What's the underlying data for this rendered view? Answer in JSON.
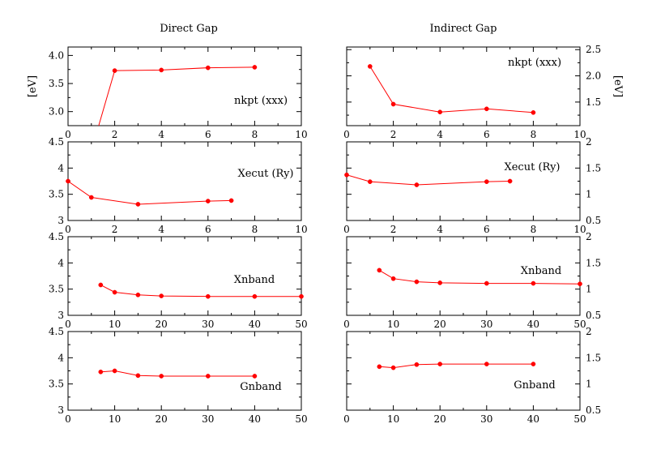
{
  "titles": {
    "direct": "Direct Gap",
    "indirect": "Indirect Gap"
  },
  "colors": {
    "series": "#ff0000",
    "axes": "#000000"
  },
  "chart_data": [
    {
      "type": "line",
      "column": "direct",
      "label": "nkpt (xxx)",
      "ylabel": "[eV]",
      "ylabel_side": "left",
      "xlim": [
        0,
        10
      ],
      "ylim": [
        2.75,
        4.15
      ],
      "xticks": [
        0,
        2,
        4,
        6,
        8,
        10
      ],
      "yticks": [
        3.0,
        3.5,
        4.0
      ],
      "ytick_labels": [
        "3.0",
        "3.5",
        "4.0"
      ],
      "x": [
        1,
        2,
        4,
        6,
        8
      ],
      "y": [
        2.3,
        3.73,
        3.74,
        3.78,
        3.79
      ],
      "markers_from": 1
    },
    {
      "type": "line",
      "column": "indirect",
      "label": "nkpt (xxx)",
      "ylabel": "[eV]",
      "ylabel_side": "right",
      "xlim": [
        0,
        10
      ],
      "ylim": [
        1.05,
        2.55
      ],
      "xticks": [
        0,
        2,
        4,
        6,
        8,
        10
      ],
      "yticks": [
        1.5,
        2.0,
        2.5
      ],
      "ytick_labels": [
        "1.5",
        "2.0",
        "2.5"
      ],
      "x": [
        1,
        2,
        4,
        6,
        8
      ],
      "y": [
        2.18,
        1.46,
        1.31,
        1.37,
        1.3
      ],
      "markers_from": 0
    },
    {
      "type": "line",
      "column": "direct",
      "label": "Xecut (Ry)",
      "xlim": [
        0,
        10
      ],
      "ylim": [
        3,
        4.5
      ],
      "xticks": [
        0,
        2,
        4,
        6,
        8,
        10
      ],
      "yticks": [
        3,
        3.5,
        4,
        4.5
      ],
      "ytick_labels": [
        "3",
        "3.5",
        "4",
        "4.5"
      ],
      "x": [
        0,
        1,
        3,
        6,
        7
      ],
      "y": [
        3.75,
        3.44,
        3.31,
        3.37,
        3.38
      ],
      "markers_from": 0
    },
    {
      "type": "line",
      "column": "indirect",
      "label": "Xecut (Ry)",
      "xlim": [
        0,
        10
      ],
      "ylim": [
        0.5,
        2
      ],
      "xticks": [
        0,
        2,
        4,
        6,
        8,
        10
      ],
      "yticks": [
        0.5,
        1,
        1.5,
        2
      ],
      "ytick_labels": [
        "0.5",
        "1",
        "1.5",
        "2"
      ],
      "x": [
        0,
        1,
        3,
        6,
        7
      ],
      "y": [
        1.37,
        1.24,
        1.18,
        1.24,
        1.25
      ],
      "markers_from": 0
    },
    {
      "type": "line",
      "column": "direct",
      "label": "Xnband",
      "xlim": [
        0,
        50
      ],
      "ylim": [
        3,
        4.5
      ],
      "xticks": [
        0,
        10,
        20,
        30,
        40,
        50
      ],
      "yticks": [
        3,
        3.5,
        4,
        4.5
      ],
      "ytick_labels": [
        "3",
        "3.5",
        "4",
        "4.5"
      ],
      "x": [
        7,
        10,
        15,
        20,
        30,
        40,
        50
      ],
      "y": [
        3.58,
        3.44,
        3.39,
        3.37,
        3.36,
        3.36,
        3.36
      ],
      "markers_from": 0
    },
    {
      "type": "line",
      "column": "indirect",
      "label": "Xnband",
      "xlim": [
        0,
        50
      ],
      "ylim": [
        0.5,
        2
      ],
      "xticks": [
        0,
        10,
        20,
        30,
        40,
        50
      ],
      "yticks": [
        0.5,
        1,
        1.5,
        2
      ],
      "ytick_labels": [
        "0.5",
        "1",
        "1.5",
        "2"
      ],
      "x": [
        7,
        10,
        15,
        20,
        30,
        40,
        50
      ],
      "y": [
        1.36,
        1.2,
        1.14,
        1.12,
        1.11,
        1.11,
        1.1
      ],
      "markers_from": 0
    },
    {
      "type": "line",
      "column": "direct",
      "label": "Gnband",
      "xlim": [
        0,
        50
      ],
      "ylim": [
        3,
        4.5
      ],
      "xticks": [
        0,
        10,
        20,
        30,
        40,
        50
      ],
      "yticks": [
        3,
        3.5,
        4,
        4.5
      ],
      "ytick_labels": [
        "3",
        "3.5",
        "4",
        "4.5"
      ],
      "x": [
        7,
        10,
        15,
        20,
        30,
        40
      ],
      "y": [
        3.73,
        3.75,
        3.66,
        3.65,
        3.65,
        3.65
      ],
      "markers_from": 0
    },
    {
      "type": "line",
      "column": "indirect",
      "label": "Gnband",
      "xlim": [
        0,
        50
      ],
      "ylim": [
        0.5,
        2
      ],
      "xticks": [
        0,
        10,
        20,
        30,
        40,
        50
      ],
      "yticks": [
        0.5,
        1,
        1.5,
        2
      ],
      "ytick_labels": [
        "0.5",
        "1",
        "1.5",
        "2"
      ],
      "x": [
        7,
        10,
        15,
        20,
        30,
        40
      ],
      "y": [
        1.33,
        1.31,
        1.37,
        1.38,
        1.38,
        1.38
      ],
      "markers_from": 0
    }
  ]
}
